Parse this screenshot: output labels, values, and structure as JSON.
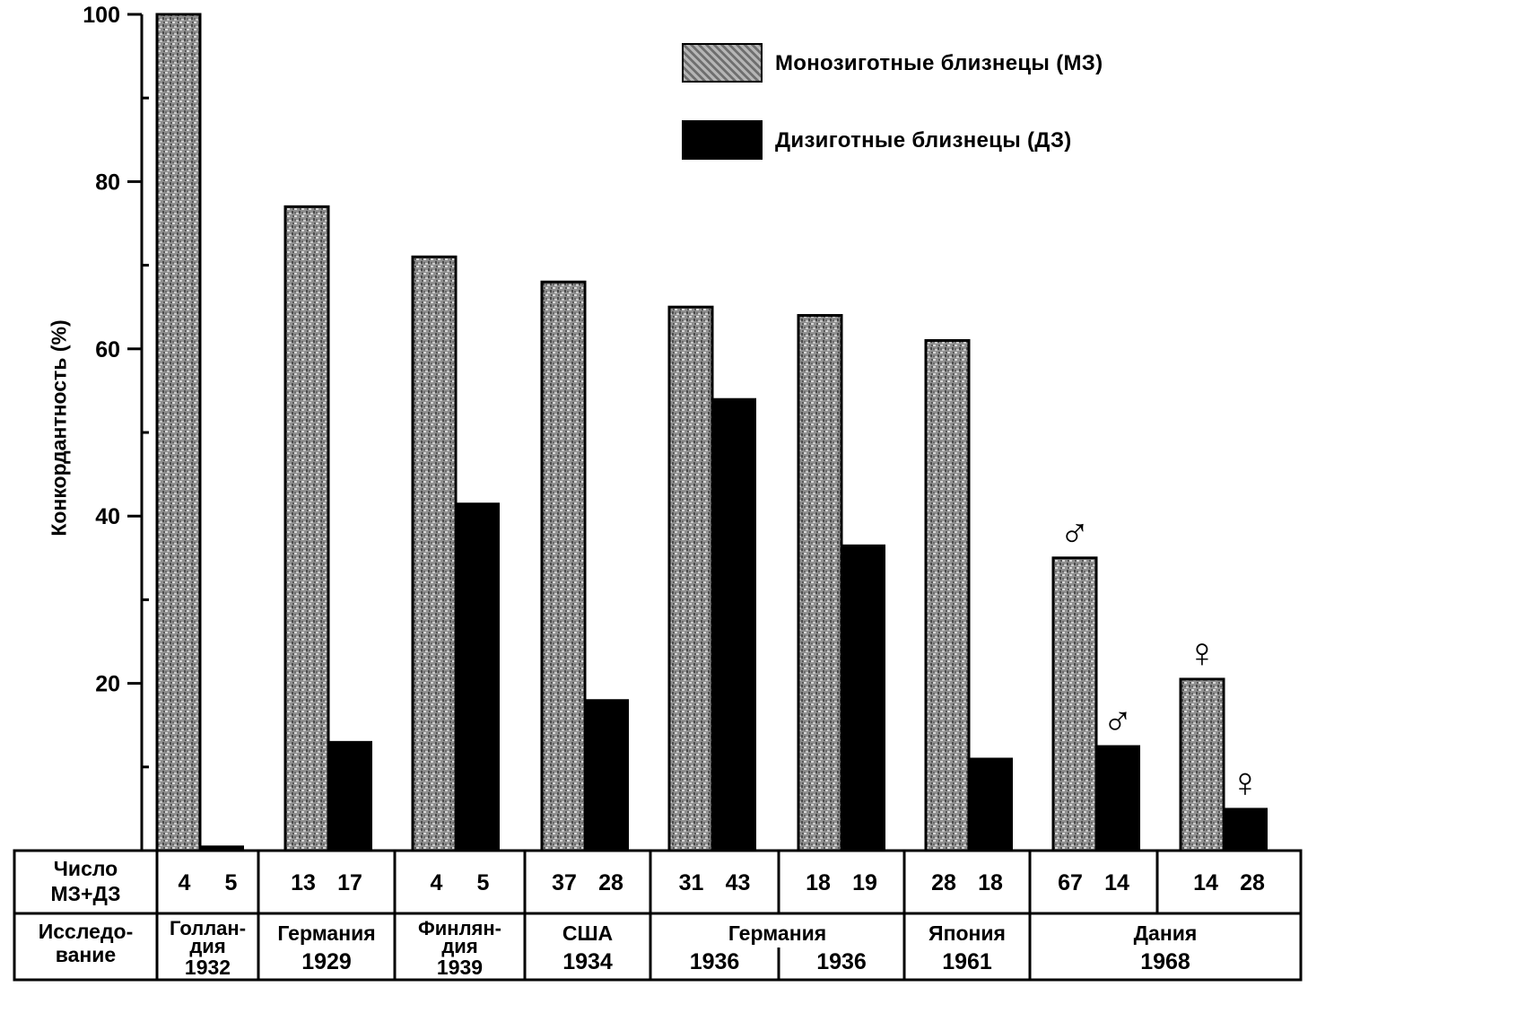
{
  "chart_data": {
    "type": "bar",
    "ylabel": "Конкордантность (%)",
    "ylim": [
      0,
      100
    ],
    "yticks": [
      20,
      40,
      60,
      80,
      100
    ],
    "legend_position": "top-right",
    "series": [
      {
        "name": "Монозиготные близнецы (МЗ)",
        "color": "#8c8c8c",
        "pattern": "mottled-gray",
        "values": [
          100,
          77,
          71,
          68,
          65,
          64,
          61,
          35,
          20.5
        ],
        "symbols": [
          "",
          "",
          "",
          "",
          "",
          "",
          "",
          "♂",
          "♀"
        ]
      },
      {
        "name": "Дизиготные близнецы (ДЗ)",
        "color": "#000000",
        "pattern": "solid",
        "values": [
          0.5,
          13,
          41.5,
          18,
          54,
          36.5,
          11,
          12.5,
          5
        ],
        "symbols": [
          "",
          "",
          "",
          "",
          "",
          "",
          "",
          "♂",
          "♀"
        ]
      }
    ],
    "counts_row_label": [
      "Число",
      "МЗ+ДЗ"
    ],
    "study_row_label": [
      "Исследо-",
      "вание"
    ],
    "counts": [
      [
        "4",
        "5"
      ],
      [
        "13",
        "17"
      ],
      [
        "4",
        "5"
      ],
      [
        "37",
        "28"
      ],
      [
        "31",
        "43"
      ],
      [
        "18",
        "19"
      ],
      [
        "28",
        "18"
      ],
      [
        "67",
        "14"
      ],
      [
        "14",
        "28"
      ]
    ],
    "studies": [
      {
        "lines": [
          "Голлан-",
          "дия",
          "1932"
        ],
        "span": [
          0
        ]
      },
      {
        "lines": [
          "Германия",
          "1929"
        ],
        "span": [
          1
        ]
      },
      {
        "lines": [
          "Финлян-",
          "дия",
          "1939"
        ],
        "span": [
          2
        ]
      },
      {
        "lines": [
          "США",
          "1934"
        ],
        "span": [
          3
        ]
      },
      {
        "lines": [
          "Германия"
        ],
        "span": [
          4,
          5
        ],
        "sub": [
          "1936",
          "1936"
        ]
      },
      {
        "lines": [
          "Япония",
          "1961"
        ],
        "span": [
          6
        ]
      },
      {
        "lines": [
          "Дания",
          "1968"
        ],
        "span": [
          7,
          8
        ]
      }
    ]
  }
}
